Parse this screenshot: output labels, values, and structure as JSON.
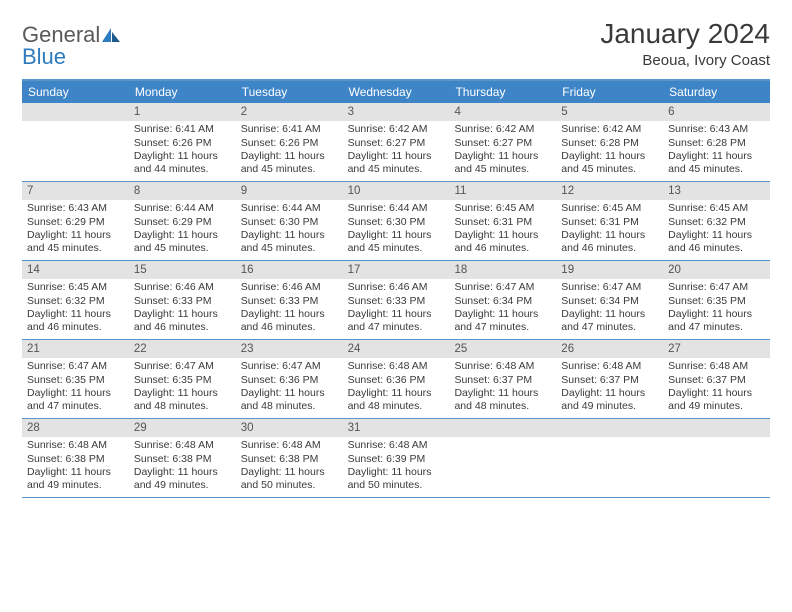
{
  "brand": {
    "word1": "General",
    "word2": "Blue"
  },
  "title": "January 2024",
  "location": "Beoua, Ivory Coast",
  "colors": {
    "header_bar": "#3d85c6",
    "header_text": "#ffffff",
    "rule": "#5a95c7",
    "daynum_bg": "#e3e3e3",
    "body_text": "#3a3a3a"
  },
  "day_headers": [
    "Sunday",
    "Monday",
    "Tuesday",
    "Wednesday",
    "Thursday",
    "Friday",
    "Saturday"
  ],
  "weeks": [
    [
      null,
      {
        "n": "1",
        "sr": "6:41 AM",
        "ss": "6:26 PM",
        "dl": "11 hours and 44 minutes."
      },
      {
        "n": "2",
        "sr": "6:41 AM",
        "ss": "6:26 PM",
        "dl": "11 hours and 45 minutes."
      },
      {
        "n": "3",
        "sr": "6:42 AM",
        "ss": "6:27 PM",
        "dl": "11 hours and 45 minutes."
      },
      {
        "n": "4",
        "sr": "6:42 AM",
        "ss": "6:27 PM",
        "dl": "11 hours and 45 minutes."
      },
      {
        "n": "5",
        "sr": "6:42 AM",
        "ss": "6:28 PM",
        "dl": "11 hours and 45 minutes."
      },
      {
        "n": "6",
        "sr": "6:43 AM",
        "ss": "6:28 PM",
        "dl": "11 hours and 45 minutes."
      }
    ],
    [
      {
        "n": "7",
        "sr": "6:43 AM",
        "ss": "6:29 PM",
        "dl": "11 hours and 45 minutes."
      },
      {
        "n": "8",
        "sr": "6:44 AM",
        "ss": "6:29 PM",
        "dl": "11 hours and 45 minutes."
      },
      {
        "n": "9",
        "sr": "6:44 AM",
        "ss": "6:30 PM",
        "dl": "11 hours and 45 minutes."
      },
      {
        "n": "10",
        "sr": "6:44 AM",
        "ss": "6:30 PM",
        "dl": "11 hours and 45 minutes."
      },
      {
        "n": "11",
        "sr": "6:45 AM",
        "ss": "6:31 PM",
        "dl": "11 hours and 46 minutes."
      },
      {
        "n": "12",
        "sr": "6:45 AM",
        "ss": "6:31 PM",
        "dl": "11 hours and 46 minutes."
      },
      {
        "n": "13",
        "sr": "6:45 AM",
        "ss": "6:32 PM",
        "dl": "11 hours and 46 minutes."
      }
    ],
    [
      {
        "n": "14",
        "sr": "6:45 AM",
        "ss": "6:32 PM",
        "dl": "11 hours and 46 minutes."
      },
      {
        "n": "15",
        "sr": "6:46 AM",
        "ss": "6:33 PM",
        "dl": "11 hours and 46 minutes."
      },
      {
        "n": "16",
        "sr": "6:46 AM",
        "ss": "6:33 PM",
        "dl": "11 hours and 46 minutes."
      },
      {
        "n": "17",
        "sr": "6:46 AM",
        "ss": "6:33 PM",
        "dl": "11 hours and 47 minutes."
      },
      {
        "n": "18",
        "sr": "6:47 AM",
        "ss": "6:34 PM",
        "dl": "11 hours and 47 minutes."
      },
      {
        "n": "19",
        "sr": "6:47 AM",
        "ss": "6:34 PM",
        "dl": "11 hours and 47 minutes."
      },
      {
        "n": "20",
        "sr": "6:47 AM",
        "ss": "6:35 PM",
        "dl": "11 hours and 47 minutes."
      }
    ],
    [
      {
        "n": "21",
        "sr": "6:47 AM",
        "ss": "6:35 PM",
        "dl": "11 hours and 47 minutes."
      },
      {
        "n": "22",
        "sr": "6:47 AM",
        "ss": "6:35 PM",
        "dl": "11 hours and 48 minutes."
      },
      {
        "n": "23",
        "sr": "6:47 AM",
        "ss": "6:36 PM",
        "dl": "11 hours and 48 minutes."
      },
      {
        "n": "24",
        "sr": "6:48 AM",
        "ss": "6:36 PM",
        "dl": "11 hours and 48 minutes."
      },
      {
        "n": "25",
        "sr": "6:48 AM",
        "ss": "6:37 PM",
        "dl": "11 hours and 48 minutes."
      },
      {
        "n": "26",
        "sr": "6:48 AM",
        "ss": "6:37 PM",
        "dl": "11 hours and 49 minutes."
      },
      {
        "n": "27",
        "sr": "6:48 AM",
        "ss": "6:37 PM",
        "dl": "11 hours and 49 minutes."
      }
    ],
    [
      {
        "n": "28",
        "sr": "6:48 AM",
        "ss": "6:38 PM",
        "dl": "11 hours and 49 minutes."
      },
      {
        "n": "29",
        "sr": "6:48 AM",
        "ss": "6:38 PM",
        "dl": "11 hours and 49 minutes."
      },
      {
        "n": "30",
        "sr": "6:48 AM",
        "ss": "6:38 PM",
        "dl": "11 hours and 50 minutes."
      },
      {
        "n": "31",
        "sr": "6:48 AM",
        "ss": "6:39 PM",
        "dl": "11 hours and 50 minutes."
      },
      null,
      null,
      null
    ]
  ],
  "labels": {
    "sunrise": "Sunrise:",
    "sunset": "Sunset:",
    "daylight": "Daylight:"
  }
}
